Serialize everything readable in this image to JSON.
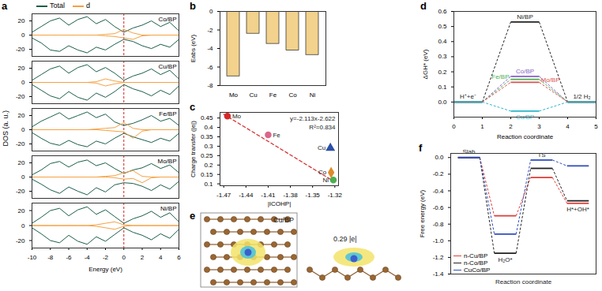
{
  "chart_data": [
    {
      "panel_label": "a",
      "type": "line",
      "xlabel": "Energy (eV)",
      "ylabel": "DOS (a. u.)",
      "xlim": [
        -10,
        6
      ],
      "xticks": [
        -10,
        -8,
        -6,
        -4,
        -2,
        0,
        2,
        4,
        6
      ],
      "ylim": [
        -30,
        30
      ],
      "yticks": [
        -20,
        0,
        20
      ],
      "fermi_level": 0,
      "x": [
        -10,
        -9,
        -8,
        -7,
        -6,
        -5,
        -4,
        -3,
        -2,
        -1,
        0,
        1,
        2,
        3,
        4,
        5,
        6
      ],
      "series_styles": [
        {
          "name": "Total",
          "color": "#1b5e4b"
        },
        {
          "name": "d",
          "color": "#f5a142"
        }
      ],
      "panels": [
        {
          "title": "Co/BP",
          "Total": {
            "up": [
              4,
              12,
              20,
              24,
              14,
              22,
              26,
              16,
              22,
              12,
              4,
              10,
              14,
              20,
              12,
              18,
              6
            ],
            "down": [
              -4,
              -11,
              -21,
              -23,
              -15,
              -21,
              -25,
              -17,
              -21,
              -13,
              -6,
              -9,
              -15,
              -19,
              -13,
              -17,
              -6
            ]
          },
          "d": {
            "up": [
              0,
              0,
              0,
              0,
              0,
              0,
              0,
              0,
              1,
              2,
              8,
              3,
              0,
              0,
              0,
              0,
              0
            ],
            "down": [
              0,
              0,
              0,
              0,
              0,
              0,
              0,
              0,
              -1,
              -2,
              -4,
              -6,
              -1,
              0,
              0,
              0,
              0
            ]
          }
        },
        {
          "title": "Cu/BP",
          "Total": {
            "up": [
              3,
              11,
              19,
              23,
              13,
              21,
              25,
              15,
              21,
              13,
              3,
              9,
              13,
              19,
              11,
              17,
              5
            ],
            "down": [
              -3,
              -11,
              -19,
              -23,
              -13,
              -21,
              -25,
              -15,
              -21,
              -13,
              -3,
              -9,
              -13,
              -19,
              -11,
              -17,
              -5
            ]
          },
          "d": {
            "up": [
              0,
              0,
              0,
              0,
              0,
              0,
              0,
              1,
              5,
              2,
              0,
              0,
              0,
              0,
              0,
              0,
              0
            ],
            "down": [
              0,
              0,
              0,
              0,
              0,
              0,
              0,
              -1,
              -5,
              -2,
              0,
              0,
              0,
              0,
              0,
              0,
              0
            ]
          }
        },
        {
          "title": "Fe/BP",
          "Total": {
            "up": [
              4,
              12,
              18,
              24,
              15,
              20,
              25,
              17,
              22,
              11,
              6,
              9,
              14,
              20,
              12,
              16,
              6
            ],
            "down": [
              -4,
              -12,
              -19,
              -22,
              -15,
              -21,
              -24,
              -16,
              -20,
              -12,
              -5,
              -10,
              -14,
              -18,
              -12,
              -16,
              -5
            ]
          },
          "d": {
            "up": [
              0,
              0,
              0,
              0,
              0,
              0,
              0,
              1,
              2,
              3,
              10,
              2,
              0,
              0,
              0,
              0,
              0
            ],
            "down": [
              0,
              0,
              0,
              0,
              0,
              0,
              0,
              0,
              -1,
              -2,
              -3,
              -12,
              -2,
              0,
              0,
              0,
              0
            ]
          }
        },
        {
          "title": "Mo/BP",
          "Total": {
            "up": [
              3,
              10,
              19,
              22,
              14,
              21,
              24,
              16,
              20,
              12,
              5,
              10,
              13,
              19,
              12,
              17,
              6
            ],
            "down": [
              -3,
              -10,
              -18,
              -23,
              -14,
              -20,
              -25,
              -15,
              -21,
              -11,
              -8,
              -9,
              -13,
              -19,
              -11,
              -17,
              -6
            ]
          },
          "d": {
            "up": [
              0,
              0,
              0,
              0,
              0,
              0,
              0,
              0,
              1,
              2,
              6,
              9,
              1,
              0,
              0,
              0,
              0
            ],
            "down": [
              0,
              0,
              0,
              0,
              0,
              0,
              0,
              0,
              0,
              -1,
              -3,
              -2,
              -8,
              -1,
              0,
              0,
              0
            ]
          }
        },
        {
          "title": "Ni/BP",
          "Total": {
            "up": [
              3,
              11,
              20,
              23,
              13,
              21,
              25,
              15,
              21,
              12,
              3,
              9,
              13,
              19,
              11,
              17,
              5
            ],
            "down": [
              -3,
              -11,
              -20,
              -23,
              -13,
              -21,
              -25,
              -15,
              -21,
              -12,
              -3,
              -9,
              -13,
              -19,
              -11,
              -17,
              -5
            ]
          },
          "d": {
            "up": [
              0,
              0,
              0,
              0,
              0,
              0,
              0,
              1,
              3,
              5,
              1,
              0,
              0,
              0,
              0,
              0,
              0
            ],
            "down": [
              0,
              0,
              0,
              0,
              0,
              0,
              0,
              -1,
              -3,
              -5,
              -1,
              0,
              0,
              0,
              0,
              0,
              0
            ]
          }
        }
      ]
    },
    {
      "panel_label": "b",
      "type": "bar",
      "ylabel": "Eabs (eV)",
      "categories": [
        "Mo",
        "Cu",
        "Fe",
        "Co",
        "Ni"
      ],
      "values": [
        -7.0,
        -2.4,
        -3.5,
        -4.2,
        -4.7
      ],
      "color": "#f2d28c",
      "ylim": [
        -8,
        0
      ],
      "yticks": [
        -8,
        -6,
        -4,
        -2,
        0
      ]
    },
    {
      "panel_label": "c",
      "type": "scatter",
      "xlabel": "|ICOHP|",
      "ylabel": "Charge transfer (|e|)",
      "xlim": [
        -1.475,
        -1.315
      ],
      "xticks": [
        -1.47,
        -1.44,
        -1.41,
        -1.38,
        -1.35,
        -1.32
      ],
      "ylim": [
        0.09,
        0.48
      ],
      "yticks": [
        0.1,
        0.15,
        0.2,
        0.25,
        0.3,
        0.35,
        0.4,
        0.45
      ],
      "points": [
        {
          "label": "Mo",
          "x": -1.465,
          "y": 0.46,
          "color": "#d62728",
          "marker": "circle"
        },
        {
          "label": "Fe",
          "x": -1.41,
          "y": 0.36,
          "color": "#d9668a",
          "marker": "circle"
        },
        {
          "label": "Cu",
          "x": -1.326,
          "y": 0.29,
          "color": "#2c4fa8",
          "marker": "triangle"
        },
        {
          "label": "Co",
          "x": -1.325,
          "y": 0.16,
          "color": "#e08a2a",
          "marker": "diamond"
        },
        {
          "label": "Ni",
          "x": -1.322,
          "y": 0.12,
          "color": "#4caf50",
          "marker": "circle"
        }
      ],
      "fit_line": {
        "x": [
          -1.47,
          -1.32
        ],
        "y": [
          0.47,
          0.11
        ],
        "color": "#d62728",
        "line_style": "dashed"
      },
      "annotations": [
        "y=-2.113x-2.622",
        "R²=0.834"
      ]
    },
    {
      "panel_label": "d",
      "type": "line",
      "xlabel": "Reaction coordinate",
      "ylabel": "ΔGH* (eV)",
      "x": [
        0,
        1,
        2,
        3,
        4,
        5
      ],
      "xlim": [
        0,
        5
      ],
      "xticks": [
        0,
        1,
        2,
        3,
        4,
        5
      ],
      "ylim": [
        -0.1,
        0.6
      ],
      "yticks": [
        {
          "value": 0,
          "label": "0.0"
        },
        0.1,
        0.2,
        0.3,
        0.4,
        0.5,
        0.6
      ],
      "initial_label": "H⁺+e⁻",
      "final_label": "1/2 H₂",
      "series": [
        {
          "name": "Ni/BP",
          "color": "#222222",
          "values": [
            0,
            0,
            0.53,
            0.53,
            0,
            0
          ]
        },
        {
          "name": "Co/BP",
          "color": "#8a5fc4",
          "values": [
            0,
            0,
            0.17,
            0.17,
            0,
            0
          ]
        },
        {
          "name": "Fe/BP",
          "color": "#4caf50",
          "values": [
            0,
            0,
            0.15,
            0.15,
            0,
            0
          ]
        },
        {
          "name": "Mo/BP",
          "color": "#d9534f",
          "values": [
            0,
            0,
            0.13,
            0.13,
            0,
            0
          ]
        },
        {
          "name": "Cu/BP",
          "color": "#2bb5c9",
          "values": [
            0,
            0,
            -0.06,
            -0.06,
            0,
            0
          ]
        }
      ]
    },
    {
      "panel_label": "e",
      "type": "diagram",
      "title": "Cu/BP",
      "charge_label": "0.29 |e|"
    },
    {
      "panel_label": "f",
      "type": "line",
      "xlabel": "Reaction coordinate",
      "ylabel": "Free energy (eV)",
      "categories": [
        "Slab",
        "H₂O*",
        "TS",
        "H*+OH*"
      ],
      "tick_labels": "y",
      "ylim": [
        -1.4,
        0.05
      ],
      "yticks": [
        {
          "value": 0,
          "label": "0.0"
        },
        -0.2,
        -0.4,
        -0.6,
        -0.8,
        {
          "value": -1,
          "label": "-1.0"
        },
        -1.2,
        -1.4
      ],
      "series": [
        {
          "name": "n-Cu/BP",
          "color": "#e0403a",
          "values": [
            0,
            -0.7,
            -0.24,
            -0.55
          ]
        },
        {
          "name": "n-Co/BP",
          "color": "#222222",
          "values": [
            0,
            -1.15,
            -0.13,
            -0.52
          ]
        },
        {
          "name": "CuCo/BP",
          "color": "#3050c0",
          "values": [
            0,
            -0.92,
            -0.03,
            -0.1
          ]
        }
      ]
    }
  ]
}
